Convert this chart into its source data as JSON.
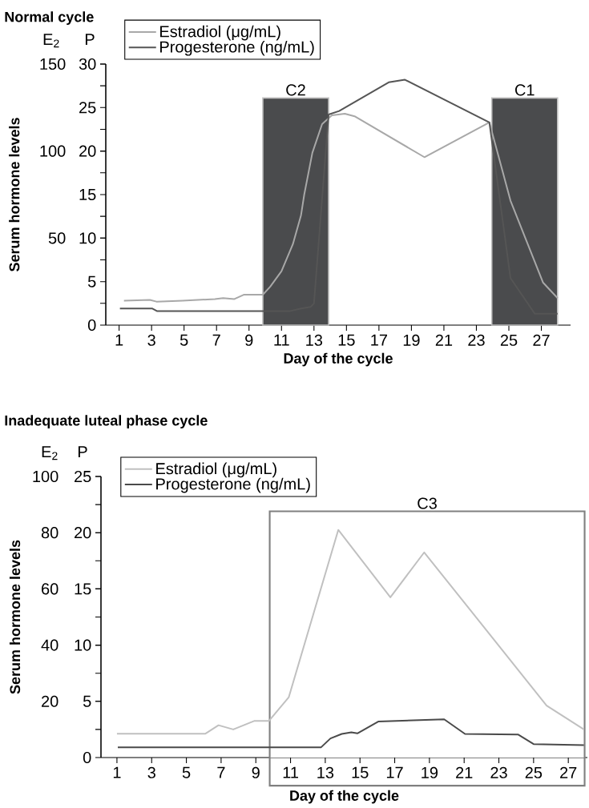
{
  "chart_data": [
    {
      "type": "line",
      "title": "Normal cycle",
      "xlabel": "Day of the cycle",
      "ylabel": "Serum hormone levels",
      "y2label": "P",
      "annotations": [
        "E$_{2}$"
      ],
      "xlim": [
        0.18,
        28.8
      ],
      "xticks": [
        1,
        3,
        5,
        7,
        9,
        11,
        13,
        15,
        17,
        19,
        21,
        23,
        25,
        27
      ],
      "ylim": [
        0,
        150
      ],
      "yticks": [
        50,
        100,
        150
      ],
      "y2lim": [
        0,
        30
      ],
      "y2ticks": [
        0,
        {
          "value": 2.5,
          "label": null
        },
        5,
        {
          "value": 7.5,
          "label": null
        },
        10,
        {
          "value": 12.5,
          "label": null
        },
        15,
        {
          "value": 17.5,
          "label": null
        },
        20,
        {
          "value": 22.5,
          "label": null
        },
        25,
        {
          "value": 27.5,
          "label": null
        },
        30
      ],
      "legend": "top left",
      "marker": "none",
      "bands": [
        {
          "axis": "x",
          "from": 9.85,
          "to": 13.9,
          "label": "C2",
          "color": "#4a4b4d"
        },
        {
          "axis": "x",
          "from": 23.95,
          "to": 28.0,
          "label": "C1",
          "color": "#4a4b4d"
        }
      ],
      "series": [
        {
          "name": "Estradiol (μg/mL)",
          "color": "#a8a8a8",
          "x": [
            1.3,
            2.9,
            3.3,
            4.9,
            6.9,
            7.4,
            8.1,
            8.7,
            9.85,
            10.3,
            11.0,
            11.7,
            12.2,
            12.4,
            12.9,
            13.5,
            14.1,
            14.9,
            15.5,
            19.8,
            23.8,
            25.1,
            27.1,
            28.0
          ],
          "values": [
            14,
            14.5,
            13.5,
            14,
            15,
            15.5,
            15,
            17.5,
            17.5,
            22,
            31,
            46.5,
            63,
            75,
            99,
            115.5,
            120.5,
            121.5,
            120,
            96.5,
            116.5,
            71.5,
            24.5,
            15.5
          ]
        },
        {
          "name": "Progesterone (ng/mL)",
          "color": "#555555",
          "axis": "y2",
          "x": [
            1.05,
            3.05,
            3.35,
            11.5,
            12.2,
            12.8,
            13.0,
            13.9,
            14.55,
            17.6,
            18.6,
            23.8,
            25.1,
            26.6,
            28.0
          ],
          "values": [
            1.9,
            1.9,
            1.6,
            1.6,
            1.9,
            2.1,
            2.5,
            24.2,
            24.6,
            27.9,
            28.2,
            23.3,
            5.4,
            1.3,
            1.3
          ]
        }
      ]
    },
    {
      "type": "line",
      "title": "Inadequate luteal phase cycle",
      "xlabel": "Day of the cycle",
      "ylabel": "Serum hormone levels",
      "y2label": "P",
      "annotations": [
        "E$_{2}$"
      ],
      "xlim": [
        0.08,
        28.1
      ],
      "xticks": [
        1,
        3,
        5,
        7,
        9,
        11,
        13,
        15,
        17,
        19,
        21,
        23,
        25,
        27
      ],
      "ylim": [
        0,
        100
      ],
      "yticks": [
        20,
        40,
        60,
        80,
        100
      ],
      "y2lim": [
        0,
        25
      ],
      "y2ticks": [
        0,
        {
          "value": 2.5,
          "label": null
        },
        5,
        {
          "value": 7.5,
          "label": null
        },
        10,
        {
          "value": 12.5,
          "label": null
        },
        15,
        {
          "value": 17.5,
          "label": null
        },
        20,
        {
          "value": 22.5,
          "label": null
        },
        25
      ],
      "legend": "top left",
      "marker": "none",
      "bands": [
        {
          "axis": "x",
          "from": 9.8,
          "to": 27.94,
          "label": "C3",
          "color": "#ffffff"
        }
      ],
      "series": [
        {
          "name": "Estradiol (μg/mL)",
          "color": "#c0c0c0",
          "x": [
            1.0,
            6.1,
            6.85,
            7.7,
            8.9,
            9.75,
            10.9,
            13.75,
            16.75,
            18.7,
            25.75,
            27.9
          ],
          "values": [
            8.5,
            8.5,
            11.5,
            10,
            13,
            13,
            21.5,
            81,
            57,
            73,
            18.5,
            10
          ]
        },
        {
          "name": "Progesterone (ng/mL)",
          "color": "#4a4a4a",
          "axis": "y2",
          "x": [
            1.05,
            12.75,
            13.3,
            13.95,
            14.5,
            14.85,
            16.05,
            19.85,
            21.05,
            24.1,
            25.0,
            27.9
          ],
          "values": [
            0.9,
            0.9,
            1.7,
            2.1,
            2.25,
            2.15,
            3.2,
            3.4,
            2.1,
            2.05,
            1.2,
            1.1
          ]
        }
      ]
    }
  ]
}
